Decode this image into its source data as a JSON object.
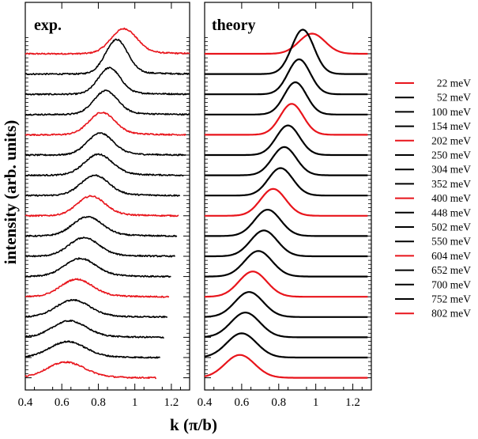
{
  "chart_data": {
    "type": "line",
    "ylabel": "intensity (arb. units)",
    "xlabel": "k (π/b)",
    "xlim": [
      0.4,
      1.3
    ],
    "xticks": [
      "0.4",
      "0.6",
      "0.8",
      "1",
      "1.2"
    ],
    "colors": {
      "red": "#e8141b",
      "black": "#000000"
    },
    "legend": {
      "placement": "right",
      "entries": [
        {
          "label": "22 meV",
          "color": "red"
        },
        {
          "label": "52 meV",
          "color": "black"
        },
        {
          "label": "100 meV",
          "color": "black"
        },
        {
          "label": "154 meV",
          "color": "black"
        },
        {
          "label": "202 meV",
          "color": "red"
        },
        {
          "label": "250 meV",
          "color": "black"
        },
        {
          "label": "304 meV",
          "color": "black"
        },
        {
          "label": "352 meV",
          "color": "black"
        },
        {
          "label": "400 meV",
          "color": "red"
        },
        {
          "label": "448 meV",
          "color": "black"
        },
        {
          "label": "502 meV",
          "color": "black"
        },
        {
          "label": "550 meV",
          "color": "black"
        },
        {
          "label": "604 meV",
          "color": "red"
        },
        {
          "label": "652 meV",
          "color": "black"
        },
        {
          "label": "700 meV",
          "color": "black"
        },
        {
          "label": "752 meV",
          "color": "black"
        },
        {
          "label": "802 meV",
          "color": "red"
        }
      ]
    },
    "panels": [
      {
        "title": "exp.",
        "noisy": true,
        "series": [
          {
            "name": "22 meV",
            "color": "red",
            "peak_k": 0.94,
            "width_k": 0.07,
            "amp": 0.9,
            "x_start": 0.4,
            "x_end": 1.3
          },
          {
            "name": "52 meV",
            "color": "black",
            "peak_k": 0.9,
            "width_k": 0.06,
            "amp": 1.25,
            "x_start": 0.4,
            "x_end": 1.3
          },
          {
            "name": "100 meV",
            "color": "black",
            "peak_k": 0.86,
            "width_k": 0.06,
            "amp": 0.95,
            "x_start": 0.4,
            "x_end": 1.3
          },
          {
            "name": "154 meV",
            "color": "black",
            "peak_k": 0.84,
            "width_k": 0.065,
            "amp": 0.85,
            "x_start": 0.4,
            "x_end": 1.3
          },
          {
            "name": "202 meV",
            "color": "red",
            "peak_k": 0.82,
            "width_k": 0.07,
            "amp": 0.8,
            "x_start": 0.4,
            "x_end": 1.28
          },
          {
            "name": "250 meV",
            "color": "black",
            "peak_k": 0.81,
            "width_k": 0.07,
            "amp": 0.78,
            "x_start": 0.4,
            "x_end": 1.28
          },
          {
            "name": "304 meV",
            "color": "black",
            "peak_k": 0.8,
            "width_k": 0.075,
            "amp": 0.75,
            "x_start": 0.4,
            "x_end": 1.27
          },
          {
            "name": "352 meV",
            "color": "black",
            "peak_k": 0.78,
            "width_k": 0.075,
            "amp": 0.72,
            "x_start": 0.4,
            "x_end": 1.25
          },
          {
            "name": "400 meV",
            "color": "red",
            "peak_k": 0.76,
            "width_k": 0.075,
            "amp": 0.7,
            "x_start": 0.4,
            "x_end": 1.24
          },
          {
            "name": "448 meV",
            "color": "black",
            "peak_k": 0.74,
            "width_k": 0.08,
            "amp": 0.68,
            "x_start": 0.4,
            "x_end": 1.23
          },
          {
            "name": "502 meV",
            "color": "black",
            "peak_k": 0.72,
            "width_k": 0.08,
            "amp": 0.66,
            "x_start": 0.4,
            "x_end": 1.22
          },
          {
            "name": "550 meV",
            "color": "black",
            "peak_k": 0.7,
            "width_k": 0.085,
            "amp": 0.64,
            "x_start": 0.4,
            "x_end": 1.2
          },
          {
            "name": "604 meV",
            "color": "red",
            "peak_k": 0.68,
            "width_k": 0.085,
            "amp": 0.62,
            "x_start": 0.4,
            "x_end": 1.19
          },
          {
            "name": "652 meV",
            "color": "black",
            "peak_k": 0.66,
            "width_k": 0.09,
            "amp": 0.6,
            "x_start": 0.4,
            "x_end": 1.18
          },
          {
            "name": "700 meV",
            "color": "black",
            "peak_k": 0.64,
            "width_k": 0.09,
            "amp": 0.58,
            "x_start": 0.4,
            "x_end": 1.16
          },
          {
            "name": "752 meV",
            "color": "black",
            "peak_k": 0.63,
            "width_k": 0.095,
            "amp": 0.56,
            "x_start": 0.4,
            "x_end": 1.14
          },
          {
            "name": "802 meV",
            "color": "red",
            "peak_k": 0.62,
            "width_k": 0.1,
            "amp": 0.55,
            "x_start": 0.4,
            "x_end": 1.12
          }
        ]
      },
      {
        "title": "theory",
        "noisy": false,
        "series": [
          {
            "name": "22 meV",
            "color": "red",
            "peak_k": 0.98,
            "width_k": 0.07,
            "amp": 0.75,
            "x_start": 0.4,
            "x_end": 1.28
          },
          {
            "name": "52 meV",
            "color": "black",
            "peak_k": 0.93,
            "width_k": 0.06,
            "amp": 1.65,
            "x_start": 0.4,
            "x_end": 1.28
          },
          {
            "name": "100 meV",
            "color": "black",
            "peak_k": 0.91,
            "width_k": 0.06,
            "amp": 1.3,
            "x_start": 0.4,
            "x_end": 1.28
          },
          {
            "name": "154 meV",
            "color": "black",
            "peak_k": 0.89,
            "width_k": 0.06,
            "amp": 1.2,
            "x_start": 0.4,
            "x_end": 1.28
          },
          {
            "name": "202 meV",
            "color": "red",
            "peak_k": 0.87,
            "width_k": 0.062,
            "amp": 1.15,
            "x_start": 0.4,
            "x_end": 1.28
          },
          {
            "name": "250 meV",
            "color": "black",
            "peak_k": 0.85,
            "width_k": 0.063,
            "amp": 1.1,
            "x_start": 0.4,
            "x_end": 1.28
          },
          {
            "name": "304 meV",
            "color": "black",
            "peak_k": 0.83,
            "width_k": 0.065,
            "amp": 1.05,
            "x_start": 0.4,
            "x_end": 1.28
          },
          {
            "name": "352 meV",
            "color": "black",
            "peak_k": 0.81,
            "width_k": 0.066,
            "amp": 1.02,
            "x_start": 0.4,
            "x_end": 1.28
          },
          {
            "name": "400 meV",
            "color": "red",
            "peak_k": 0.77,
            "width_k": 0.068,
            "amp": 1.0,
            "x_start": 0.4,
            "x_end": 1.28
          },
          {
            "name": "448 meV",
            "color": "black",
            "peak_k": 0.74,
            "width_k": 0.07,
            "amp": 0.98,
            "x_start": 0.4,
            "x_end": 1.28
          },
          {
            "name": "502 meV",
            "color": "black",
            "peak_k": 0.72,
            "width_k": 0.072,
            "amp": 0.96,
            "x_start": 0.4,
            "x_end": 1.28
          },
          {
            "name": "550 meV",
            "color": "black",
            "peak_k": 0.69,
            "width_k": 0.074,
            "amp": 0.95,
            "x_start": 0.4,
            "x_end": 1.28
          },
          {
            "name": "604 meV",
            "color": "red",
            "peak_k": 0.66,
            "width_k": 0.075,
            "amp": 0.94,
            "x_start": 0.4,
            "x_end": 1.28
          },
          {
            "name": "652 meV",
            "color": "black",
            "peak_k": 0.64,
            "width_k": 0.076,
            "amp": 0.93,
            "x_start": 0.4,
            "x_end": 1.28
          },
          {
            "name": "700 meV",
            "color": "black",
            "peak_k": 0.62,
            "width_k": 0.078,
            "amp": 0.92,
            "x_start": 0.4,
            "x_end": 1.28
          },
          {
            "name": "752 meV",
            "color": "black",
            "peak_k": 0.6,
            "width_k": 0.08,
            "amp": 0.9,
            "x_start": 0.4,
            "x_end": 1.28
          },
          {
            "name": "802 meV",
            "color": "red",
            "peak_k": 0.59,
            "width_k": 0.08,
            "amp": 0.85,
            "x_start": 0.4,
            "x_end": 1.28
          }
        ]
      }
    ]
  }
}
